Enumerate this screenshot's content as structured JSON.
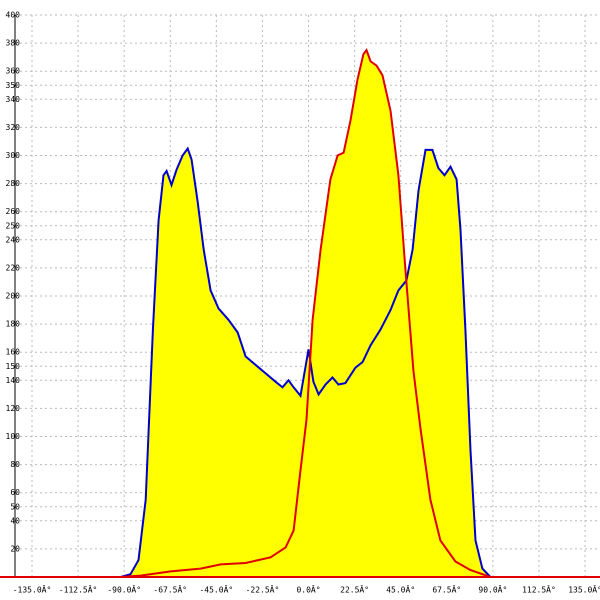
{
  "chart_data": {
    "type": "area",
    "xlim": [
      -143.3,
      142.3
    ],
    "ylim": [
      0,
      400
    ],
    "xticks": [
      {
        "value": -135,
        "label": "-135.0Â°"
      },
      {
        "value": -112.5,
        "label": "-112.5Â°"
      },
      {
        "value": -90,
        "label": "-90.0Â°"
      },
      {
        "value": -67.5,
        "label": "-67.5Â°"
      },
      {
        "value": -45,
        "label": "-45.0Â°"
      },
      {
        "value": -22.5,
        "label": "-22.5Â°"
      },
      {
        "value": 0,
        "label": "0.0Â°"
      },
      {
        "value": 22.5,
        "label": "22.5Â°"
      },
      {
        "value": 45,
        "label": "45.0Â°"
      },
      {
        "value": 67.5,
        "label": "67.5Â°"
      },
      {
        "value": 90,
        "label": "90.0Â°"
      },
      {
        "value": 112.5,
        "label": "112.5Â°"
      },
      {
        "value": 135,
        "label": "135.0Â°"
      }
    ],
    "yticks": [
      20,
      40,
      50,
      60,
      80,
      100,
      120,
      140,
      150,
      160,
      180,
      200,
      220,
      240,
      250,
      260,
      280,
      300,
      320,
      340,
      350,
      360,
      380,
      400
    ],
    "grid": true,
    "fill_color": "#ffff00",
    "series": [
      {
        "color": "#0000cc",
        "x": [
          -91.7,
          -86.9,
          -83,
          -79.5,
          -76,
          -73.2,
          -70.8,
          -69.3,
          -66.9,
          -64.4,
          -61.5,
          -59,
          -57.1,
          -54.2,
          -51.2,
          -47.8,
          -43.9,
          -39,
          -34.6,
          -30.7,
          -25.9,
          -21,
          -16.1,
          -12.7,
          -9.8,
          -7.3,
          -3.9,
          0,
          2.4,
          4.9,
          8.3,
          11.7,
          14.6,
          18,
          22.9,
          26.4,
          30.3,
          35.1,
          40,
          43.9,
          47.8,
          50.8,
          53.7,
          57.1,
          60.5,
          63.4,
          66.4,
          69.3,
          72.3,
          74.2,
          76.6,
          79.1,
          81.5,
          84.9,
          88.8
        ],
        "values": [
          0,
          2,
          12,
          55,
          176,
          254,
          286,
          289,
          279,
          290,
          300,
          305,
          297,
          268,
          233,
          204,
          191,
          183,
          174,
          157,
          151,
          145,
          139,
          135,
          140,
          135,
          129,
          162,
          139,
          130,
          137,
          142,
          137,
          138,
          149,
          153,
          165,
          176,
          190,
          204,
          211,
          233,
          275,
          304,
          304,
          291,
          286,
          292,
          283,
          247,
          176,
          90,
          26,
          6,
          0
        ]
      },
      {
        "color": "#e00000",
        "x": [
          -91.7,
          -82,
          -67.3,
          -52.7,
          -42.9,
          -30.7,
          -18.5,
          -11.2,
          -7.3,
          -3.9,
          -1,
          2,
          5.9,
          10.7,
          14.2,
          17.1,
          20.5,
          23.9,
          26.8,
          28.3,
          30.3,
          33.2,
          36.1,
          40,
          43.9,
          47.3,
          51.2,
          54.7,
          59.5,
          64.4,
          71.7,
          79,
          88.8
        ],
        "values": [
          0,
          1,
          4,
          6,
          9,
          10,
          14,
          21,
          33,
          76,
          112,
          183,
          233,
          283,
          300,
          302,
          325,
          354,
          372,
          375,
          367,
          364,
          357,
          332,
          286,
          219,
          147,
          105,
          55,
          26,
          11,
          5,
          0
        ]
      }
    ]
  }
}
